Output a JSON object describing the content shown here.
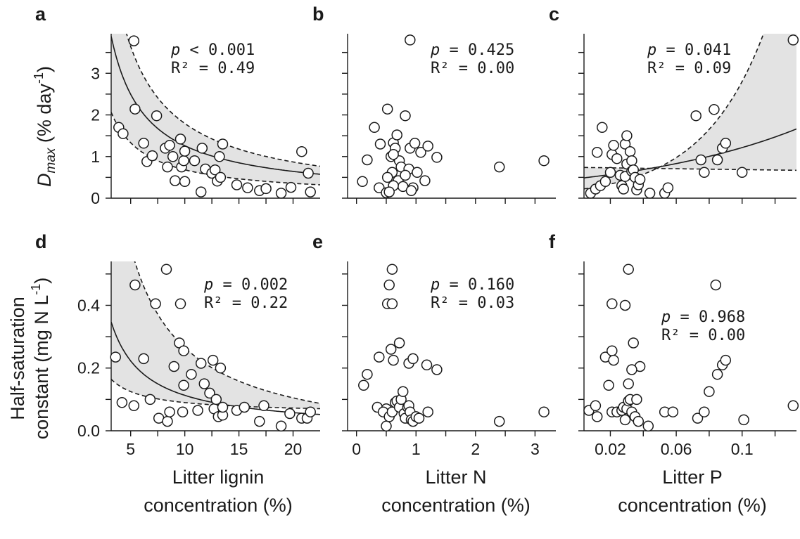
{
  "chart_data": [
    {
      "panel": "a",
      "type": "scatter",
      "row": 0,
      "col": 0,
      "xlim": [
        3.2,
        22.5
      ],
      "ylim": [
        0,
        3.95
      ],
      "xticks": [
        5,
        10,
        15,
        20
      ],
      "yticks": [
        0,
        1,
        2,
        3
      ],
      "stat_p": "p < 0.001",
      "stat_r2": "R² = 0.49",
      "fit": {
        "a": 12.36,
        "b": 0.025,
        "low_a": 6.5,
        "low_b": 0.032,
        "high_a": 18.5,
        "high_b": -0.055
      },
      "points": [
        [
          5.3,
          3.78
        ],
        [
          3.9,
          1.7
        ],
        [
          4.3,
          1.55
        ],
        [
          5.4,
          2.14
        ],
        [
          6.2,
          1.32
        ],
        [
          6.5,
          0.88
        ],
        [
          7.0,
          1.02
        ],
        [
          7.4,
          1.98
        ],
        [
          8.2,
          1.2
        ],
        [
          8.4,
          0.75
        ],
        [
          8.6,
          1.27
        ],
        [
          8.9,
          1.0
        ],
        [
          9.1,
          0.42
        ],
        [
          9.6,
          1.42
        ],
        [
          9.7,
          0.75
        ],
        [
          9.9,
          0.9
        ],
        [
          10.0,
          1.13
        ],
        [
          10.0,
          0.4
        ],
        [
          10.9,
          0.9
        ],
        [
          11.5,
          0.15
        ],
        [
          11.6,
          1.2
        ],
        [
          11.9,
          0.7
        ],
        [
          12.5,
          0.6
        ],
        [
          12.8,
          0.68
        ],
        [
          13.0,
          0.41
        ],
        [
          13.2,
          1.0
        ],
        [
          13.5,
          1.3
        ],
        [
          13.3,
          0.5
        ],
        [
          14.8,
          0.32
        ],
        [
          15.8,
          0.25
        ],
        [
          16.9,
          0.18
        ],
        [
          17.5,
          0.23
        ],
        [
          18.9,
          0.12
        ],
        [
          19.8,
          0.26
        ],
        [
          20.8,
          1.12
        ],
        [
          21.4,
          0.6
        ],
        [
          21.6,
          0.15
        ]
      ]
    },
    {
      "panel": "b",
      "type": "scatter",
      "row": 0,
      "col": 1,
      "xlim": [
        -0.15,
        3.35
      ],
      "ylim": [
        0,
        3.95
      ],
      "xticks": [
        0,
        1,
        2,
        3
      ],
      "yticks": [
        0,
        1,
        2,
        3
      ],
      "stat_p": "p = 0.425",
      "stat_r2": "R² = 0.00",
      "points": [
        [
          0.9,
          3.8
        ],
        [
          0.3,
          1.7
        ],
        [
          0.52,
          2.14
        ],
        [
          0.82,
          1.98
        ],
        [
          0.18,
          0.92
        ],
        [
          0.1,
          0.4
        ],
        [
          0.38,
          0.25
        ],
        [
          0.5,
          0.13
        ],
        [
          0.4,
          1.3
        ],
        [
          0.58,
          1.0
        ],
        [
          0.62,
          1.33
        ],
        [
          0.68,
          1.52
        ],
        [
          0.65,
          1.2
        ],
        [
          0.72,
          0.9
        ],
        [
          0.75,
          0.75
        ],
        [
          0.6,
          0.62
        ],
        [
          0.52,
          0.5
        ],
        [
          0.7,
          0.42
        ],
        [
          0.78,
          0.28
        ],
        [
          0.62,
          0.3
        ],
        [
          0.55,
          0.15
        ],
        [
          0.88,
          0.7
        ],
        [
          0.9,
          1.2
        ],
        [
          0.95,
          0.25
        ],
        [
          0.98,
          1.32
        ],
        [
          1.02,
          0.62
        ],
        [
          1.08,
          1.1
        ],
        [
          1.15,
          0.42
        ],
        [
          1.2,
          1.25
        ],
        [
          1.35,
          0.98
        ],
        [
          0.92,
          0.18
        ],
        [
          0.82,
          0.55
        ],
        [
          0.62,
          1.05
        ],
        [
          2.4,
          0.75
        ],
        [
          3.15,
          0.9
        ]
      ]
    },
    {
      "panel": "c",
      "type": "scatter",
      "row": 0,
      "col": 2,
      "xlim": [
        0.004,
        0.133
      ],
      "ylim": [
        0,
        3.95
      ],
      "xticks": [
        0.02,
        0.06,
        0.1
      ],
      "yticks": [
        0,
        1,
        2,
        3
      ],
      "stat_p": "p = 0.041",
      "stat_r2": "R² = 0.09",
      "fit": {
        "f0": 0.47,
        "k": 9.5,
        "low_f0": 0.74,
        "low_k": -0.75,
        "high_f0": 0.2,
        "high_k": 26.4
      },
      "points": [
        [
          0.131,
          3.8
        ],
        [
          0.008,
          0.12
        ],
        [
          0.011,
          0.22
        ],
        [
          0.014,
          0.3
        ],
        [
          0.012,
          1.1
        ],
        [
          0.015,
          1.7
        ],
        [
          0.017,
          0.4
        ],
        [
          0.02,
          0.62
        ],
        [
          0.021,
          1.05
        ],
        [
          0.022,
          1.27
        ],
        [
          0.024,
          0.95
        ],
        [
          0.026,
          0.55
        ],
        [
          0.027,
          0.3
        ],
        [
          0.028,
          0.22
        ],
        [
          0.029,
          0.52
        ],
        [
          0.029,
          1.3
        ],
        [
          0.03,
          1.5
        ],
        [
          0.03,
          0.82
        ],
        [
          0.032,
          1.12
        ],
        [
          0.033,
          0.65
        ],
        [
          0.033,
          0.9
        ],
        [
          0.034,
          0.68
        ],
        [
          0.035,
          0.5
        ],
        [
          0.036,
          0.2
        ],
        [
          0.037,
          0.32
        ],
        [
          0.038,
          0.45
        ],
        [
          0.044,
          0.12
        ],
        [
          0.053,
          0.12
        ],
        [
          0.055,
          0.25
        ],
        [
          0.072,
          1.98
        ],
        [
          0.075,
          0.92
        ],
        [
          0.077,
          0.62
        ],
        [
          0.083,
          2.13
        ],
        [
          0.085,
          0.92
        ],
        [
          0.088,
          1.2
        ],
        [
          0.09,
          1.32
        ],
        [
          0.1,
          0.62
        ]
      ]
    },
    {
      "panel": "d",
      "type": "scatter",
      "row": 1,
      "col": 0,
      "xlim": [
        3.2,
        22.5
      ],
      "ylim": [
        0,
        0.54
      ],
      "xticks": [
        5,
        10,
        15,
        20
      ],
      "yticks": [
        0.0,
        0.2,
        0.4
      ],
      "ytick_labels": [
        "0.0",
        "0.2",
        "0.4"
      ],
      "stat_p": "p = 0.002",
      "stat_r2": "R² = 0.22",
      "fit": {
        "a": 1.1,
        "b": 0.003,
        "low_a": 0.35,
        "low_b": 0.055,
        "high_a": 3.2,
        "high_b": -0.055
      },
      "points": [
        [
          3.6,
          0.235
        ],
        [
          4.2,
          0.09
        ],
        [
          5.4,
          0.465
        ],
        [
          5.3,
          0.08
        ],
        [
          6.2,
          0.23
        ],
        [
          6.8,
          0.1
        ],
        [
          7.3,
          0.405
        ],
        [
          7.6,
          0.04
        ],
        [
          8.3,
          0.515
        ],
        [
          8.4,
          0.03
        ],
        [
          8.6,
          0.06
        ],
        [
          9.0,
          0.205
        ],
        [
          9.5,
          0.28
        ],
        [
          9.6,
          0.405
        ],
        [
          9.8,
          0.06
        ],
        [
          9.9,
          0.145
        ],
        [
          9.9,
          0.255
        ],
        [
          10.6,
          0.18
        ],
        [
          11.2,
          0.065
        ],
        [
          11.5,
          0.215
        ],
        [
          11.8,
          0.15
        ],
        [
          12.3,
          0.12
        ],
        [
          12.6,
          0.225
        ],
        [
          12.7,
          0.07
        ],
        [
          12.9,
          0.1
        ],
        [
          13.1,
          0.045
        ],
        [
          13.3,
          0.2
        ],
        [
          13.5,
          0.05
        ],
        [
          13.5,
          0.075
        ],
        [
          14.8,
          0.065
        ],
        [
          15.5,
          0.075
        ],
        [
          16.9,
          0.03
        ],
        [
          17.3,
          0.08
        ],
        [
          18.9,
          0.015
        ],
        [
          19.7,
          0.055
        ],
        [
          20.8,
          0.04
        ],
        [
          21.3,
          0.04
        ],
        [
          21.6,
          0.06
        ]
      ]
    },
    {
      "panel": "e",
      "type": "scatter",
      "row": 1,
      "col": 1,
      "xlim": [
        -0.15,
        3.35
      ],
      "ylim": [
        0,
        0.54
      ],
      "xticks": [
        0,
        1,
        2,
        3
      ],
      "yticks": [
        0.0,
        0.2,
        0.4
      ],
      "stat_p": "p = 0.160",
      "stat_r2": "R² = 0.03",
      "points": [
        [
          0.6,
          0.515
        ],
        [
          0.55,
          0.465
        ],
        [
          0.52,
          0.405
        ],
        [
          0.6,
          0.405
        ],
        [
          0.38,
          0.235
        ],
        [
          0.18,
          0.18
        ],
        [
          0.12,
          0.145
        ],
        [
          0.58,
          0.26
        ],
        [
          0.62,
          0.225
        ],
        [
          0.72,
          0.28
        ],
        [
          0.88,
          0.215
        ],
        [
          0.95,
          0.23
        ],
        [
          1.18,
          0.21
        ],
        [
          1.35,
          0.195
        ],
        [
          0.35,
          0.075
        ],
        [
          0.5,
          0.07
        ],
        [
          0.45,
          0.06
        ],
        [
          0.5,
          0.015
        ],
        [
          0.55,
          0.045
        ],
        [
          0.6,
          0.06
        ],
        [
          0.65,
          0.09
        ],
        [
          0.68,
          0.095
        ],
        [
          0.72,
          0.075
        ],
        [
          0.75,
          0.1
        ],
        [
          0.78,
          0.125
        ],
        [
          0.8,
          0.055
        ],
        [
          0.82,
          0.04
        ],
        [
          0.86,
          0.075
        ],
        [
          0.88,
          0.08
        ],
        [
          0.9,
          0.06
        ],
        [
          0.92,
          0.035
        ],
        [
          0.95,
          0.03
        ],
        [
          1.0,
          0.045
        ],
        [
          1.05,
          0.04
        ],
        [
          1.2,
          0.06
        ],
        [
          2.4,
          0.03
        ],
        [
          3.15,
          0.06
        ]
      ]
    },
    {
      "panel": "f",
      "type": "scatter",
      "row": 1,
      "col": 2,
      "xlim": [
        0.004,
        0.133
      ],
      "ylim": [
        0,
        0.54
      ],
      "xticks": [
        0.02,
        0.06,
        0.1
      ],
      "yticks": [
        0.0,
        0.2,
        0.4
      ],
      "stat_p": "p = 0.968",
      "stat_r2": "R² = 0.00",
      "points": [
        [
          0.031,
          0.515
        ],
        [
          0.021,
          0.405
        ],
        [
          0.029,
          0.4
        ],
        [
          0.084,
          0.465
        ],
        [
          0.017,
          0.235
        ],
        [
          0.021,
          0.255
        ],
        [
          0.022,
          0.225
        ],
        [
          0.034,
          0.28
        ],
        [
          0.038,
          0.205
        ],
        [
          0.033,
          0.195
        ],
        [
          0.031,
          0.15
        ],
        [
          0.019,
          0.145
        ],
        [
          0.007,
          0.065
        ],
        [
          0.011,
          0.08
        ],
        [
          0.012,
          0.045
        ],
        [
          0.021,
          0.06
        ],
        [
          0.024,
          0.06
        ],
        [
          0.027,
          0.065
        ],
        [
          0.028,
          0.075
        ],
        [
          0.029,
          0.035
        ],
        [
          0.03,
          0.07
        ],
        [
          0.031,
          0.095
        ],
        [
          0.032,
          0.1
        ],
        [
          0.033,
          0.06
        ],
        [
          0.035,
          0.045
        ],
        [
          0.036,
          0.1
        ],
        [
          0.037,
          0.03
        ],
        [
          0.043,
          0.015
        ],
        [
          0.053,
          0.06
        ],
        [
          0.058,
          0.06
        ],
        [
          0.073,
          0.04
        ],
        [
          0.077,
          0.06
        ],
        [
          0.08,
          0.125
        ],
        [
          0.085,
          0.18
        ],
        [
          0.088,
          0.21
        ],
        [
          0.09,
          0.225
        ],
        [
          0.101,
          0.035
        ],
        [
          0.131,
          0.08
        ]
      ]
    }
  ],
  "labels": {
    "xlabels": [
      [
        "Litter lignin",
        "concentration (%)"
      ],
      [
        "Litter N",
        "concentration (%)"
      ],
      [
        "Litter P",
        "concentration (%)"
      ]
    ],
    "ylabel_top_main": "D",
    "ylabel_top_sub": "max",
    "ylabel_top_rest": " (% day",
    "ylabel_top_sup": "-1",
    "ylabel_top_end": ")",
    "ylabel_bottom_line1": "Half-saturation",
    "ylabel_bottom_line2_main": "constant (mg N L",
    "ylabel_bottom_line2_sup": "-1",
    "ylabel_bottom_line2_end": ")"
  },
  "colors": {
    "axis": "#1a1a1a",
    "band": "#e3e3e3",
    "point_fill": "#ffffff"
  }
}
